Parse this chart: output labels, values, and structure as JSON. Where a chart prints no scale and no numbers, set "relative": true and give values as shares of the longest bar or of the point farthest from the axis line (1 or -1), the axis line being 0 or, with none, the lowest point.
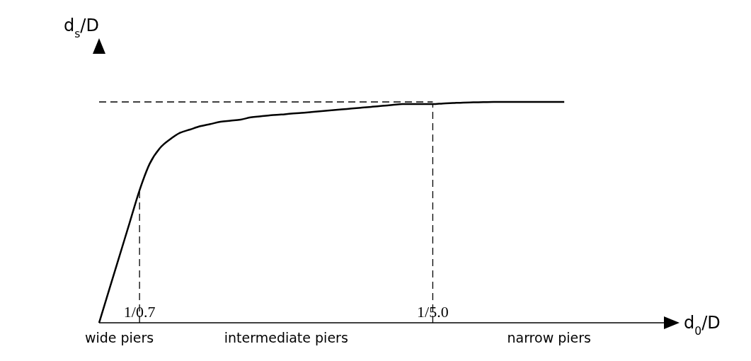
{
  "chart_data": {
    "type": "line",
    "relative": true,
    "xlabel": "d$_{0}$/D",
    "ylabel": "d$_{s}$/D",
    "categories": [
      null,
      null,
      null,
      null,
      "1/0.7",
      null,
      null,
      null,
      null,
      null,
      null,
      null,
      null,
      null,
      null,
      null,
      null,
      null,
      null,
      null,
      null,
      null,
      null,
      null,
      null,
      null,
      null,
      null,
      null,
      null,
      null,
      null,
      null,
      "1/5.0",
      null,
      null,
      null,
      null,
      null,
      null,
      null,
      null,
      null,
      null,
      null,
      null,
      null,
      null,
      null,
      null,
      null,
      null,
      null,
      null,
      null,
      null,
      null
    ],
    "series": [
      {
        "color": "#000000",
        "values": [
          0,
          0.15,
          0.3,
          0.45,
          0.6,
          0.72,
          0.79,
          0.83,
          0.86,
          0.875,
          0.89,
          0.9,
          0.91,
          0.915,
          0.92,
          0.93,
          0.935,
          0.94,
          0.943,
          0.947,
          0.95,
          0.954,
          0.958,
          0.962,
          0.966,
          0.97,
          0.974,
          0.978,
          0.982,
          0.986,
          0.99,
          0.99,
          0.99,
          0.99,
          0.993,
          0.995,
          0.997,
          0.998,
          0.999,
          1,
          1,
          1,
          1,
          1,
          1,
          1,
          1,
          null,
          null,
          null,
          null,
          null,
          null,
          null,
          null,
          null,
          null
        ]
      }
    ],
    "ref_lines": [
      {
        "axis": "x",
        "value": "1/0.7",
        "color": "#000000",
        "line_style": "dashed"
      },
      {
        "axis": "x",
        "value": "1/5.0",
        "color": "#000000",
        "line_style": "dashed"
      },
      {
        "axis": "y",
        "value": 1,
        "color": "#000000",
        "line_style": "dashed"
      }
    ],
    "annotations": [
      "wide piers",
      "intermediate piers",
      "narrow piers"
    ],
    "grid": false,
    "legend": false,
    "marker": "none",
    "line_style": "solid"
  }
}
